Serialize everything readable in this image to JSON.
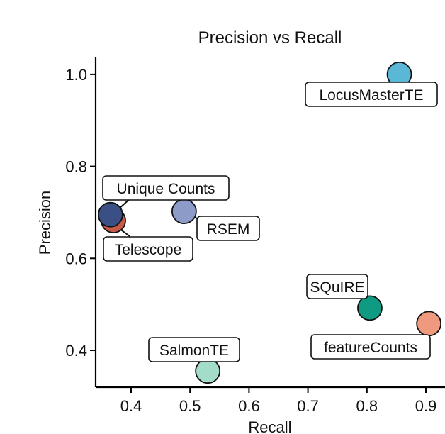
{
  "chart_data": {
    "type": "scatter",
    "title": "Precision vs Recall",
    "xlabel": "Recall",
    "ylabel": "Precision",
    "xticks": [
      0.4,
      0.5,
      0.6,
      0.7,
      0.8,
      0.9
    ],
    "yticks": [
      0.4,
      0.6,
      0.8,
      1.0
    ],
    "xtick_labels": [
      "0.4",
      "0.5",
      "0.6",
      "0.7",
      "0.8",
      "0.9"
    ],
    "ytick_labels": [
      "0.4",
      "0.6",
      "0.8",
      "1.0"
    ],
    "grid": false,
    "legend": "none",
    "points": [
      {
        "name": "LocusMasterTE",
        "x": 0.855,
        "y": 1.0,
        "color": "#5ab8d6"
      },
      {
        "name": "Unique Counts",
        "x": 0.365,
        "y": 0.695,
        "color": "#3b4f87"
      },
      {
        "name": "Telescope",
        "x": 0.37,
        "y": 0.682,
        "color": "#c65a48"
      },
      {
        "name": "RSEM",
        "x": 0.49,
        "y": 0.702,
        "color": "#8c9bc8"
      },
      {
        "name": "SQuIRE",
        "x": 0.805,
        "y": 0.492,
        "color": "#0f9a82"
      },
      {
        "name": "featureCounts",
        "x": 0.905,
        "y": 0.458,
        "color": "#ef9a7e"
      },
      {
        "name": "SalmonTE",
        "x": 0.53,
        "y": 0.355,
        "color": "#a4dcca"
      }
    ]
  }
}
